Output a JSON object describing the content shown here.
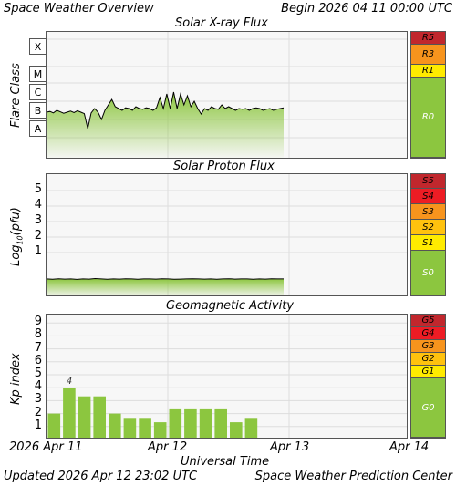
{
  "header": {
    "title": "Space Weather Overview",
    "begin": "Begin 2026 04 11 00:00 UTC"
  },
  "footer": {
    "updated": "Updated 2026 Apr 12 23:02 UTC",
    "center": "Space Weather Prediction Center",
    "xaxis_title": "Universal Time"
  },
  "colors": {
    "green": "#8cc63f",
    "yellow": "#ffeb00",
    "orange_light": "#ffc20e",
    "orange": "#f7941d",
    "red_orange": "#f15a24",
    "red": "#ed1c24",
    "dark_red": "#c1272d"
  },
  "chart_data": [
    {
      "type": "line",
      "title": "Solar X-ray Flux",
      "ylabel": "Flare Class",
      "classes": [
        "X",
        "M",
        "C",
        "B",
        "A"
      ],
      "scale": [
        {
          "label": "R5",
          "color": "#c1272d"
        },
        {
          "label": "R3",
          "color": "#f7941d"
        },
        {
          "label": "R1",
          "color": "#ffeb00"
        },
        {
          "label": "R0",
          "color": "#8cc63f"
        }
      ],
      "series": [
        {
          "values": [
            1.0,
            1.02,
            0.98,
            1.05,
            1.01,
            0.97,
            1.0,
            1.03,
            0.99,
            1.04,
            1.0,
            0.96,
            0.55,
            0.98,
            1.1,
            1.0,
            0.8,
            1.05,
            1.2,
            1.35,
            1.15,
            1.1,
            1.05,
            1.12,
            1.1,
            1.05,
            1.15,
            1.1,
            1.08,
            1.12,
            1.1,
            1.05,
            1.12,
            1.4,
            1.1,
            1.5,
            1.1,
            1.55,
            1.1,
            1.5,
            1.2,
            1.45,
            1.15,
            1.3,
            1.1,
            0.95,
            1.1,
            1.05,
            1.15,
            1.1,
            1.08,
            1.2,
            1.1,
            1.15,
            1.1,
            1.05,
            1.1,
            1.08,
            1.1,
            1.05,
            1.1,
            1.12,
            1.1,
            1.05,
            1.08,
            1.1,
            1.05,
            1.08,
            1.1,
            1.12
          ]
        }
      ]
    },
    {
      "type": "line",
      "title": "Solar Proton Flux",
      "ylabel": "Log10(pfu)",
      "yticks": [
        "5",
        "4",
        "3",
        "2",
        "1"
      ],
      "scale": [
        {
          "label": "S5",
          "color": "#c1272d"
        },
        {
          "label": "S4",
          "color": "#ed1c24"
        },
        {
          "label": "S3",
          "color": "#f7941d"
        },
        {
          "label": "S2",
          "color": "#ffc20e"
        },
        {
          "label": "S1",
          "color": "#ffeb00"
        },
        {
          "label": "S0",
          "color": "#8cc63f"
        }
      ],
      "series": [
        {
          "values": [
            -0.7,
            -0.72,
            -0.69,
            -0.71,
            -0.7,
            -0.73,
            -0.7,
            -0.71,
            -0.68,
            -0.7,
            -0.72,
            -0.7,
            -0.71,
            -0.69,
            -0.7,
            -0.72,
            -0.7,
            -0.7,
            -0.71,
            -0.69,
            -0.7,
            -0.72,
            -0.71,
            -0.7,
            -0.69,
            -0.7,
            -0.71,
            -0.7,
            -0.72,
            -0.7,
            -0.69,
            -0.71,
            -0.7,
            -0.7,
            -0.72,
            -0.7,
            -0.71,
            -0.69,
            -0.7,
            -0.7
          ]
        }
      ]
    },
    {
      "type": "bar",
      "title": "Geomagnetic Activity",
      "ylabel": "Kp index",
      "ylim": [
        0,
        9
      ],
      "yticks": [
        "9",
        "8",
        "7",
        "6",
        "5",
        "4",
        "3",
        "2",
        "1"
      ],
      "x_ticks": [
        "2026 Apr 11",
        "Apr 12",
        "Apr 13",
        "Apr 14"
      ],
      "values": [
        2.0,
        4.0,
        3.33,
        3.33,
        2.0,
        1.67,
        1.67,
        1.33,
        2.33,
        2.33,
        2.33,
        2.33,
        1.33,
        1.67
      ],
      "annotation": "4",
      "scale": [
        {
          "label": "G5",
          "color": "#c1272d"
        },
        {
          "label": "G4",
          "color": "#ed1c24"
        },
        {
          "label": "G3",
          "color": "#f7941d"
        },
        {
          "label": "G2",
          "color": "#ffc20e"
        },
        {
          "label": "G1",
          "color": "#ffeb00"
        },
        {
          "label": "G0",
          "color": "#8cc63f"
        }
      ]
    }
  ]
}
